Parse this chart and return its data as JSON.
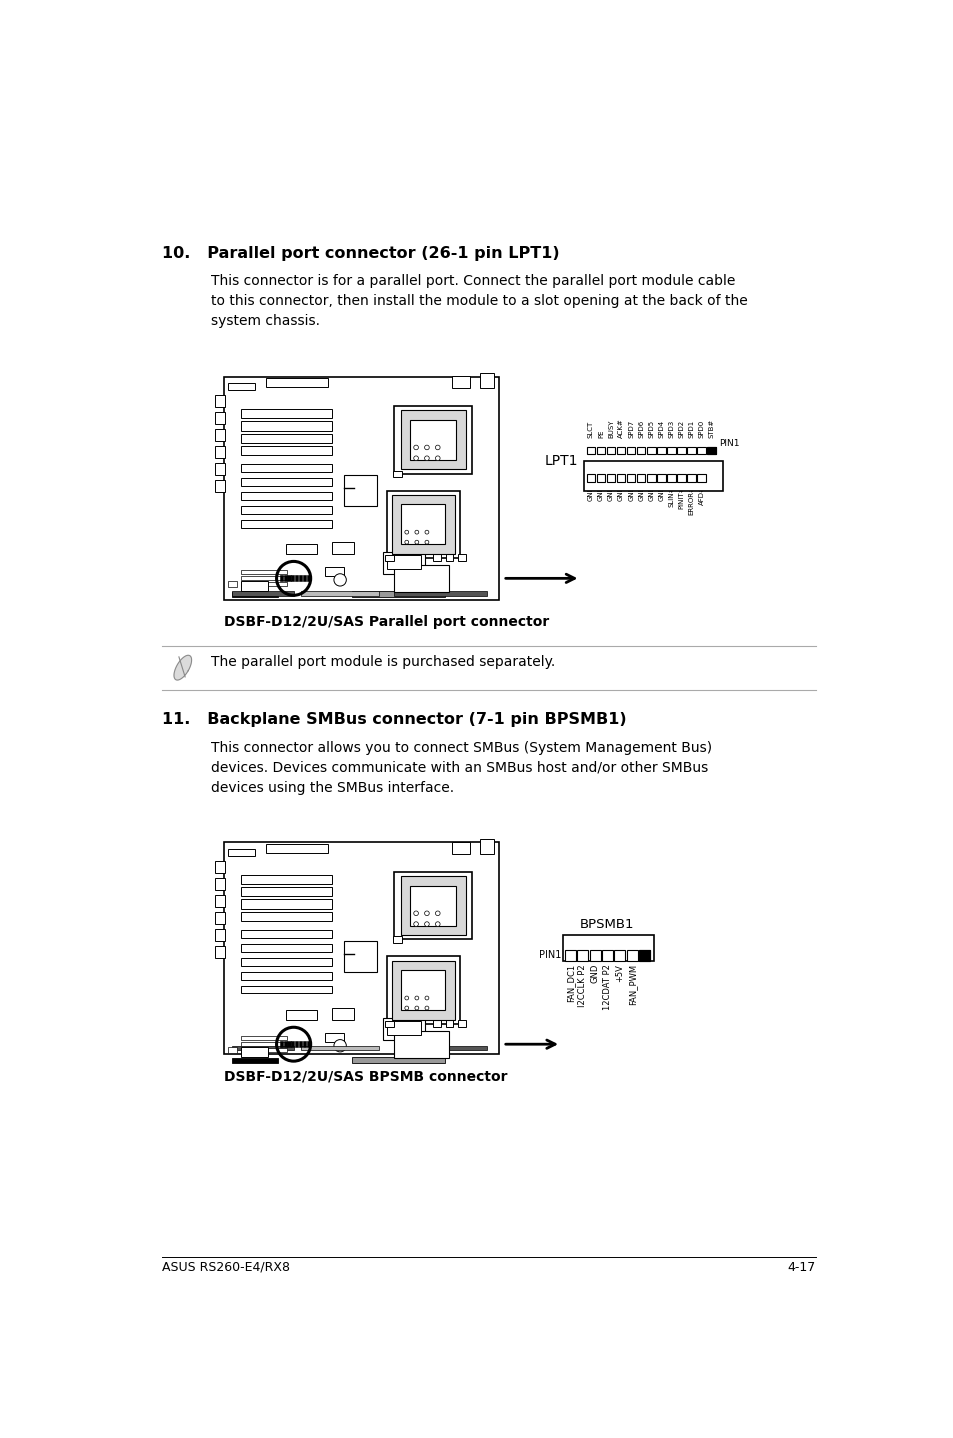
{
  "bg_color": "#ffffff",
  "footer_left": "ASUS RS260-E4/RX8",
  "footer_right": "4-17",
  "section10_heading": "10.   Parallel port connector (26-1 pin LPT1)",
  "section10_body": "This connector is for a parallel port. Connect the parallel port module cable\nto this connector, then install the module to a slot opening at the back of the\nsystem chassis.",
  "section10_label": "DSBF-D12/2U/SAS Parallel port connector",
  "lpt1_label": "LPT1",
  "lpt1_pin1_label": "PIN1",
  "lpt1_top_pins": [
    "SLCT",
    "PE",
    "BUSY",
    "ACK#",
    "SPD7",
    "SPD6",
    "SPD5",
    "SPD4",
    "SPD3",
    "SPD2",
    "SPD1",
    "SPD0",
    "STB#"
  ],
  "lpt1_bot_pins": [
    "GND",
    "GND",
    "GND",
    "GND",
    "GND",
    "GND",
    "GND",
    "GND",
    "SLIN#",
    "PINIT#",
    "ERROR#",
    "AFD#"
  ],
  "note_text": "The parallel port module is purchased separately.",
  "section11_heading": "11.   Backplane SMBus connector (7-1 pin BPSMB1)",
  "section11_body": "This connector allows you to connect SMBus (System Management Bus)\ndevices. Devices communicate with an SMBus host and/or other SMBus\ndevices using the SMBus interface.",
  "section11_label": "DSBF-D12/2U/SAS BPSMB connector",
  "bpsmb1_label": "BPSMB1",
  "bpsmb1_pin1_label": "PIN1",
  "bpsmb1_pins": [
    "FAN_DC1",
    "I2CCLK P2",
    "GND",
    "12CDAT P2",
    "+5V",
    "FAN_PWM"
  ]
}
